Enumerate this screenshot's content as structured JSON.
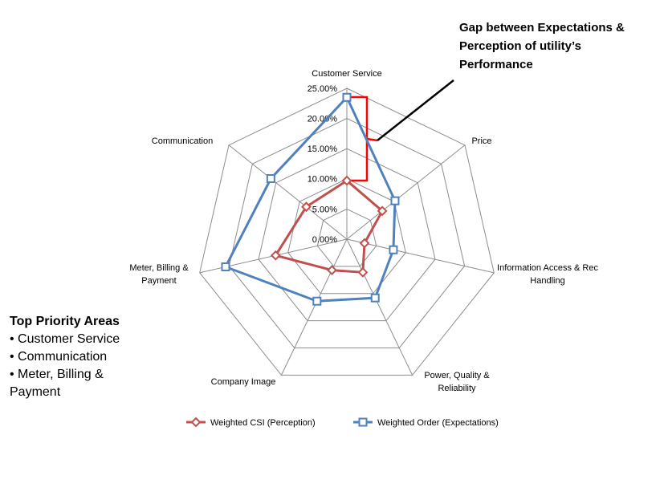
{
  "chart_data": {
    "type": "radar",
    "categories": [
      "Customer Service",
      "Price",
      "Information Access & Rec Handling",
      "Power, Quality & Reliability",
      "Company Image",
      "Meter, Billing & Payment",
      "Communication"
    ],
    "series": [
      {
        "name": "Weighted CSI (Perception)",
        "color": "#c0504d",
        "marker": "diamond",
        "values": [
          9.7,
          7.5,
          3.0,
          6.1,
          5.7,
          12.1,
          8.6
        ]
      },
      {
        "name": "Weighted Order (Expectations)",
        "color": "#4f81bd",
        "marker": "square",
        "values": [
          23.5,
          10.2,
          7.9,
          10.8,
          11.4,
          20.6,
          16.1
        ]
      }
    ],
    "ylim": [
      0,
      25
    ],
    "yticks": [
      {
        "value": 0,
        "label": "0.00%"
      },
      {
        "value": 5,
        "label": "5.00%"
      },
      {
        "value": 10,
        "label": "10.00%"
      },
      {
        "value": 15,
        "label": "15.00%"
      },
      {
        "value": 20,
        "label": "20.00%"
      },
      {
        "value": 25,
        "label": "25.00%"
      }
    ],
    "grid": true,
    "legend": "bottom",
    "annotation": "Gap between Expectations & Perception of utility’s Performance"
  },
  "priority_areas": {
    "title": "Top Priority Areas",
    "items": [
      "• Customer Service",
      "• Communication",
      "• Meter, Billing & Payment"
    ]
  }
}
